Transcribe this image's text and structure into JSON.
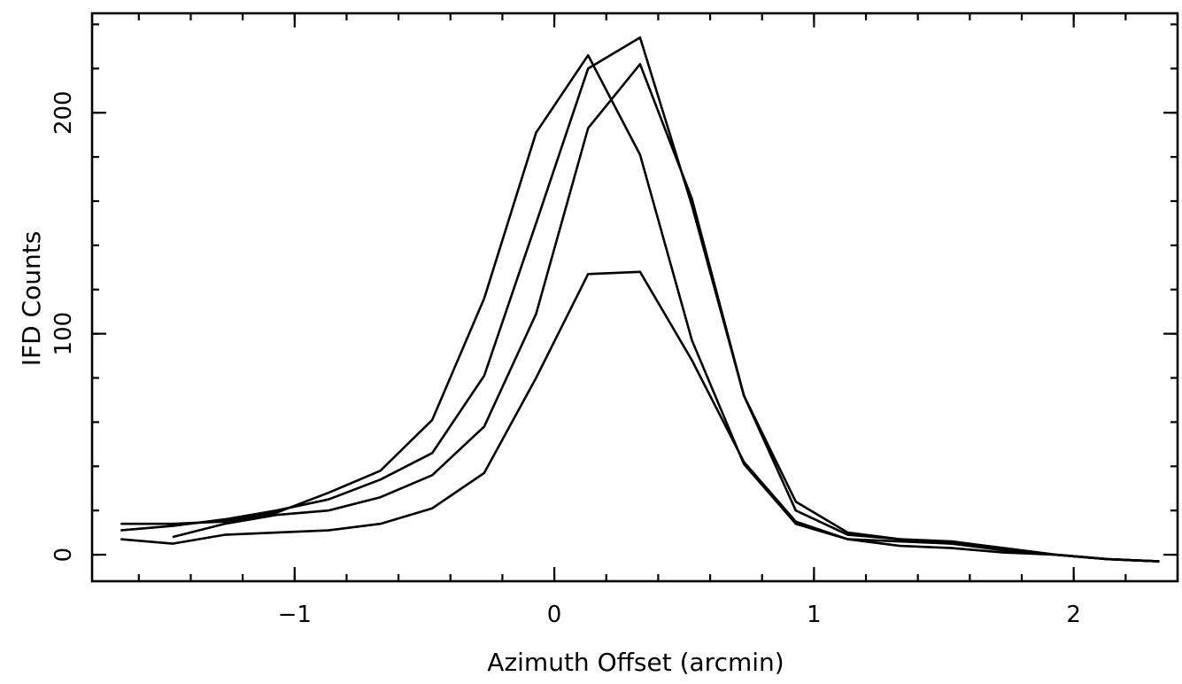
{
  "chart_data": {
    "type": "line",
    "title": "",
    "xlabel": "Azimuth Offset (arcmin)",
    "ylabel": "IFD Counts",
    "xlim": [
      -1.78,
      2.4
    ],
    "ylim": [
      -12,
      245
    ],
    "xticks": [
      {
        "value": -1,
        "label": "−1"
      },
      {
        "value": 0,
        "label": "0"
      },
      {
        "value": 1,
        "label": "1"
      },
      {
        "value": 2,
        "label": "2"
      }
    ],
    "xminor_step": 0.2,
    "yticks": [
      {
        "value": 0,
        "label": "0"
      },
      {
        "value": 100,
        "label": "100"
      },
      {
        "value": 200,
        "label": "200"
      }
    ],
    "yminor_step": 20,
    "grid": false,
    "line_color": "#000000",
    "series": [
      {
        "x": [
          -1.67,
          -1.47,
          -1.27,
          -1.07,
          -0.87,
          -0.67,
          -0.47,
          -0.27,
          -0.07,
          0.13,
          0.33,
          0.53,
          0.73,
          0.93,
          1.13,
          1.33,
          1.53,
          1.73,
          1.93,
          2.13,
          2.33
        ],
        "y": [
          14,
          14,
          15,
          19,
          28,
          38,
          61,
          116,
          191,
          226,
          181,
          97,
          41,
          14,
          7,
          6,
          5,
          2,
          0,
          -2,
          -3
        ]
      },
      {
        "x": [
          -1.67,
          -1.47,
          -1.27,
          -1.07,
          -0.87,
          -0.67,
          -0.47,
          -0.27,
          -0.07,
          0.13,
          0.33,
          0.53,
          0.73,
          0.93,
          1.13,
          1.33,
          1.53,
          1.73,
          1.93,
          2.13,
          2.33
        ],
        "y": [
          11,
          13,
          16,
          20,
          25,
          34,
          46,
          81,
          150,
          220,
          234,
          158,
          72,
          20,
          9,
          7,
          6,
          3,
          0,
          -2,
          -3
        ]
      },
      {
        "x": [
          -1.47,
          -1.27,
          -1.07,
          -0.87,
          -0.67,
          -0.47,
          -0.27,
          -0.07,
          0.13,
          0.33,
          0.53,
          0.73,
          0.93,
          1.13,
          1.33,
          1.53,
          1.73,
          1.93,
          2.13,
          2.33
        ],
        "y": [
          8,
          14,
          18,
          20,
          26,
          36,
          58,
          109,
          193,
          222,
          161,
          72,
          24,
          10,
          7,
          5,
          3,
          0,
          -2,
          -3
        ]
      },
      {
        "x": [
          -1.67,
          -1.47,
          -1.27,
          -1.07,
          -0.87,
          -0.67,
          -0.47,
          -0.27,
          -0.07,
          0.13,
          0.33,
          0.53,
          0.73,
          0.93,
          1.13,
          1.33,
          1.53,
          1.73,
          1.93,
          2.13,
          2.33
        ],
        "y": [
          7,
          5,
          9,
          10,
          11,
          14,
          21,
          37,
          80,
          127,
          128,
          88,
          42,
          15,
          7,
          4,
          3,
          1,
          0,
          -2,
          -3
        ]
      }
    ]
  }
}
